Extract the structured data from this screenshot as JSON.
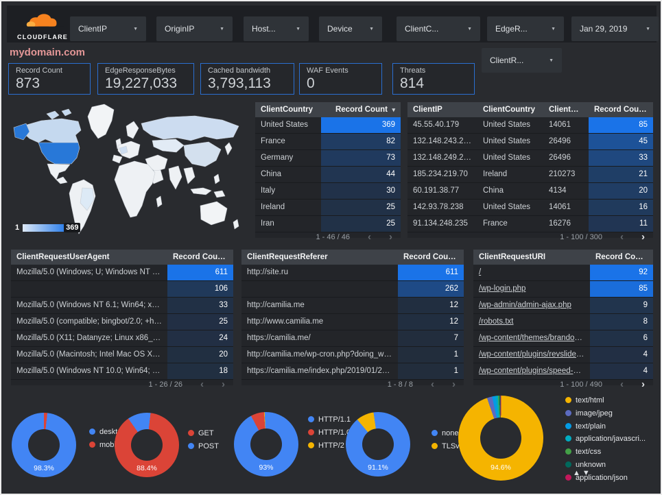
{
  "header": {
    "logo_text": "CLOUDFLARE",
    "filters": [
      "ClientIP",
      "OriginIP",
      "Host...",
      "Device",
      "ClientC...",
      "EdgeR..."
    ],
    "date_filter": "Jan 29, 2019",
    "filter_row2": "ClientR..."
  },
  "page_title": "mydomain.com",
  "icons": {
    "caret": "▼",
    "sort_desc": "▾",
    "prev": "‹",
    "next": "›",
    "sort_up": "▲",
    "sort_down": "▼"
  },
  "colors": {
    "accent_blue": "#1a73e8",
    "heat_rgb": "26,115,232",
    "scorecard_border": "#2a6fd2",
    "title_pink": "#e49797",
    "map_max_blue": "#1a73e8",
    "cloudflare_orange": "#f6821f"
  },
  "scorecards": [
    {
      "label": "Record Count",
      "value": "873"
    },
    {
      "label": "EdgeResponseBytes",
      "value": "19,227,033"
    },
    {
      "label": "Cached bandwidth",
      "value": "3,793,113"
    },
    {
      "label": "WAF Events",
      "value": "0"
    },
    {
      "label": "Threats",
      "value": "814"
    }
  ],
  "map": {
    "legend_min": "1",
    "legend_max": "369"
  },
  "tables": [
    {
      "name": "client-country-table",
      "css": "t-country",
      "columns": [
        "ClientCountry",
        "Record Count"
      ],
      "sort_col": 1,
      "heat_col": 1,
      "max": 369,
      "rows": [
        [
          "United States",
          369
        ],
        [
          "France",
          82
        ],
        [
          "Germany",
          73
        ],
        [
          "China",
          44
        ],
        [
          "Italy",
          30
        ],
        [
          "Ireland",
          25
        ],
        [
          "Iran",
          25
        ]
      ],
      "pagination": {
        "text": "1 - 46 / 46",
        "prev": false,
        "next": false
      }
    },
    {
      "name": "client-ip-table",
      "css": "t-clientip",
      "columns": [
        "ClientIP",
        "ClientCountry",
        "ClientASN",
        "Record Count"
      ],
      "sort_col": 3,
      "heat_col": 3,
      "max": 85,
      "rows": [
        [
          "45.55.40.179",
          "United States",
          "14061",
          85
        ],
        [
          "132.148.243.238",
          "United States",
          "26496",
          45
        ],
        [
          "132.148.249.210",
          "United States",
          "26496",
          33
        ],
        [
          "185.234.219.70",
          "Ireland",
          "210273",
          21
        ],
        [
          "60.191.38.77",
          "China",
          "4134",
          20
        ],
        [
          "142.93.78.238",
          "United States",
          "14061",
          16
        ],
        [
          "91.134.248.235",
          "France",
          "16276",
          11
        ]
      ],
      "pagination": {
        "text": "1 - 100 / 300",
        "prev": false,
        "next": true
      }
    },
    {
      "name": "client-request-user-agent-table",
      "css": "t-ua",
      "columns": [
        "ClientRequestUserAgent",
        "Record Count"
      ],
      "sort_col": 1,
      "heat_col": 1,
      "max": 611,
      "rows": [
        [
          "Mozilla/5.0 (Windows; U; Windows NT 5.1; en-U...",
          611
        ],
        [
          "",
          106
        ],
        [
          "Mozilla/5.0 (Windows NT 6.1; Win64; x64; rv:64...",
          33
        ],
        [
          "Mozilla/5.0 (compatible; bingbot/2.0; +http://w...",
          25
        ],
        [
          "Mozilla/5.0 (X11; Datanyze; Linux x86_64) Appl...",
          24
        ],
        [
          "Mozilla/5.0 (Macintosh; Intel Mac OS X 10.11; r...",
          20
        ],
        [
          "Mozilla/5.0 (Windows NT 10.0; Win64; x64) App...",
          18
        ]
      ],
      "pagination": {
        "text": "1 - 26 / 26",
        "prev": false,
        "next": false
      }
    },
    {
      "name": "client-request-referer-table",
      "css": "t-ref",
      "columns": [
        "ClientRequestReferer",
        "Record Count"
      ],
      "sort_col": 1,
      "heat_col": 1,
      "max": 611,
      "rows": [
        [
          "http://site.ru",
          611
        ],
        [
          "",
          262
        ],
        [
          "http://camilia.me",
          12
        ],
        [
          "http://www.camilia.me",
          12
        ],
        [
          "https://camilia.me/",
          7
        ],
        [
          "http://camilia.me/wp-cron.php?doing_wp_cron...",
          1
        ],
        [
          "https://camilia.me/index.php/2019/01/26/stor...",
          1
        ]
      ],
      "pagination": {
        "text": "1 - 8 / 8",
        "prev": false,
        "next": false
      }
    },
    {
      "name": "client-request-uri-table",
      "css": "t-uri",
      "link_col": 0,
      "columns": [
        "ClientRequestURI",
        "Record Count"
      ],
      "sort_col": 1,
      "heat_col": 1,
      "max": 92,
      "rows": [
        [
          "/",
          92
        ],
        [
          "/wp-login.php",
          85
        ],
        [
          "/wp-admin/admin-ajax.php",
          9
        ],
        [
          "/robots.txt",
          8
        ],
        [
          "/wp-content/themes/brandon/plu...",
          6
        ],
        [
          "/wp-content/plugins/revslider/rs-p...",
          4
        ],
        [
          "/wp-content/plugins/speed-booste...",
          4
        ]
      ],
      "pagination": {
        "text": "1 - 100 / 490",
        "prev": false,
        "next": true
      }
    }
  ],
  "donuts": [
    {
      "name": "device-type-donut",
      "label": "98.3%",
      "from": 0,
      "slices": [
        {
          "name": "mobile",
          "value": 1.7,
          "color": "#db4437"
        },
        {
          "name": "deskt...",
          "value": 98.3,
          "color": "#4285f4"
        }
      ],
      "legend": [
        {
          "label": "deskt...",
          "color": "#4285f4"
        },
        {
          "label": "mobile",
          "color": "#db4437"
        }
      ]
    },
    {
      "name": "request-method-donut",
      "label": "88.4%",
      "from": -35,
      "slices": [
        {
          "name": "POST",
          "value": 11.6,
          "color": "#4285f4"
        },
        {
          "name": "GET",
          "value": 88.4,
          "color": "#db4437"
        }
      ],
      "legend": [
        {
          "label": "GET",
          "color": "#db4437"
        },
        {
          "label": "POST",
          "color": "#4285f4"
        }
      ]
    },
    {
      "name": "http-protocol-donut",
      "label": "93%",
      "from": -28,
      "slices": [
        {
          "name": "HTTP/1.0",
          "value": 6.7,
          "color": "#db4437"
        },
        {
          "name": "HTTP/2",
          "value": 0.3,
          "color": "#f4b400"
        },
        {
          "name": "HTTP/1.1",
          "value": 93,
          "color": "#4285f4"
        }
      ],
      "legend": [
        {
          "label": "HTTP/1.1",
          "color": "#4285f4"
        },
        {
          "label": "HTTP/1.0",
          "color": "#db4437"
        },
        {
          "label": "HTTP/2",
          "color": "#f4b400"
        }
      ]
    },
    {
      "name": "tls-version-donut",
      "label": "91.1%",
      "from": -40,
      "slices": [
        {
          "name": "TLSv..",
          "value": 8.9,
          "color": "#f4b400"
        },
        {
          "name": "none",
          "value": 91.1,
          "color": "#4285f4"
        }
      ],
      "legend": [
        {
          "label": "none",
          "color": "#4285f4"
        },
        {
          "label": "TLSv..",
          "color": "#f4b400"
        }
      ]
    },
    {
      "name": "content-type-donut",
      "label": "94.6%",
      "from": -19,
      "slices": [
        {
          "name": "image/jpeg",
          "value": 2.0,
          "color": "#5c6bc0"
        },
        {
          "name": "text/plain",
          "value": 1.3,
          "color": "#039be5"
        },
        {
          "name": "application/javascri...",
          "value": 0.9,
          "color": "#00acc1"
        },
        {
          "name": "text/css",
          "value": 0.5,
          "color": "#43a047"
        },
        {
          "name": "unknown",
          "value": 0.4,
          "color": "#00695c"
        },
        {
          "name": "application/json",
          "value": 0.3,
          "color": "#c2185b"
        },
        {
          "name": "text/html",
          "value": 94.6,
          "color": "#f5b400"
        }
      ],
      "legend": [
        {
          "label": "text/html",
          "color": "#f5b400"
        },
        {
          "label": "image/jpeg",
          "color": "#5c6bc0"
        },
        {
          "label": "text/plain",
          "color": "#039be5"
        },
        {
          "label": "application/javascri...",
          "color": "#00acc1"
        },
        {
          "label": "text/css",
          "color": "#43a047"
        },
        {
          "label": "unknown",
          "color": "#00695c"
        },
        {
          "label": "application/json",
          "color": "#c2185b"
        }
      ]
    }
  ]
}
